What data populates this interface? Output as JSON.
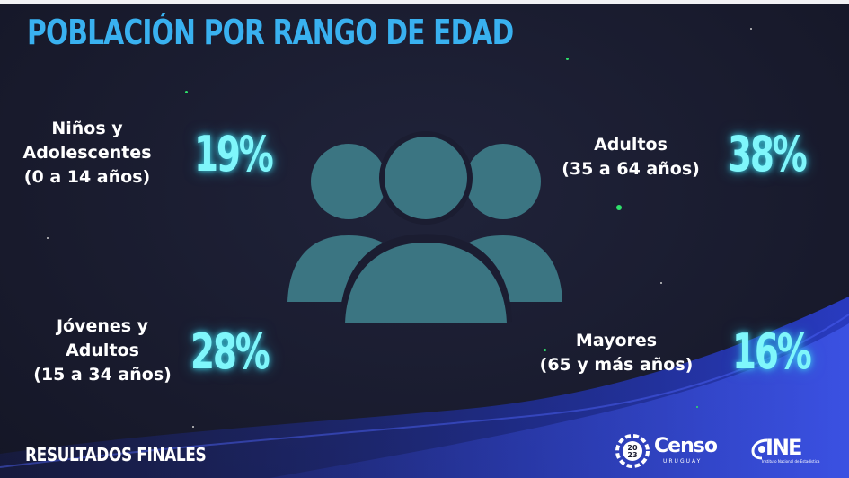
{
  "title": "POBLACIÓN POR RANGO DE EDAD",
  "groups": [
    {
      "lines": [
        "Niños y",
        "Adolescentes",
        "(0 a 14 años)"
      ],
      "value": "19%"
    },
    {
      "lines": [
        "Adultos",
        "(35 a 64 años)"
      ],
      "value": "38%"
    },
    {
      "lines": [
        "Jóvenes y",
        "Adultos",
        "(15 a 34 años)"
      ],
      "value": "28%"
    },
    {
      "lines": [
        "Mayores",
        "(65 y más años)"
      ],
      "value": "16%"
    }
  ],
  "footer": "RESULTADOS FINALES",
  "logos": {
    "censo": {
      "name": "Censo",
      "sub": "URUGUAY",
      "year": "2023"
    },
    "ine": {
      "name": "INE",
      "sub": "Instituto Nacional de Estadística"
    }
  },
  "colors": {
    "background": "#1a1c30",
    "title": "#39b1f0",
    "percent": "#7ff6fb",
    "icon": "#3b7582",
    "wave": "#1f2a8a",
    "star": "#2ee06a"
  },
  "icons": [
    "people-group-icon",
    "censo-badge-icon"
  ]
}
